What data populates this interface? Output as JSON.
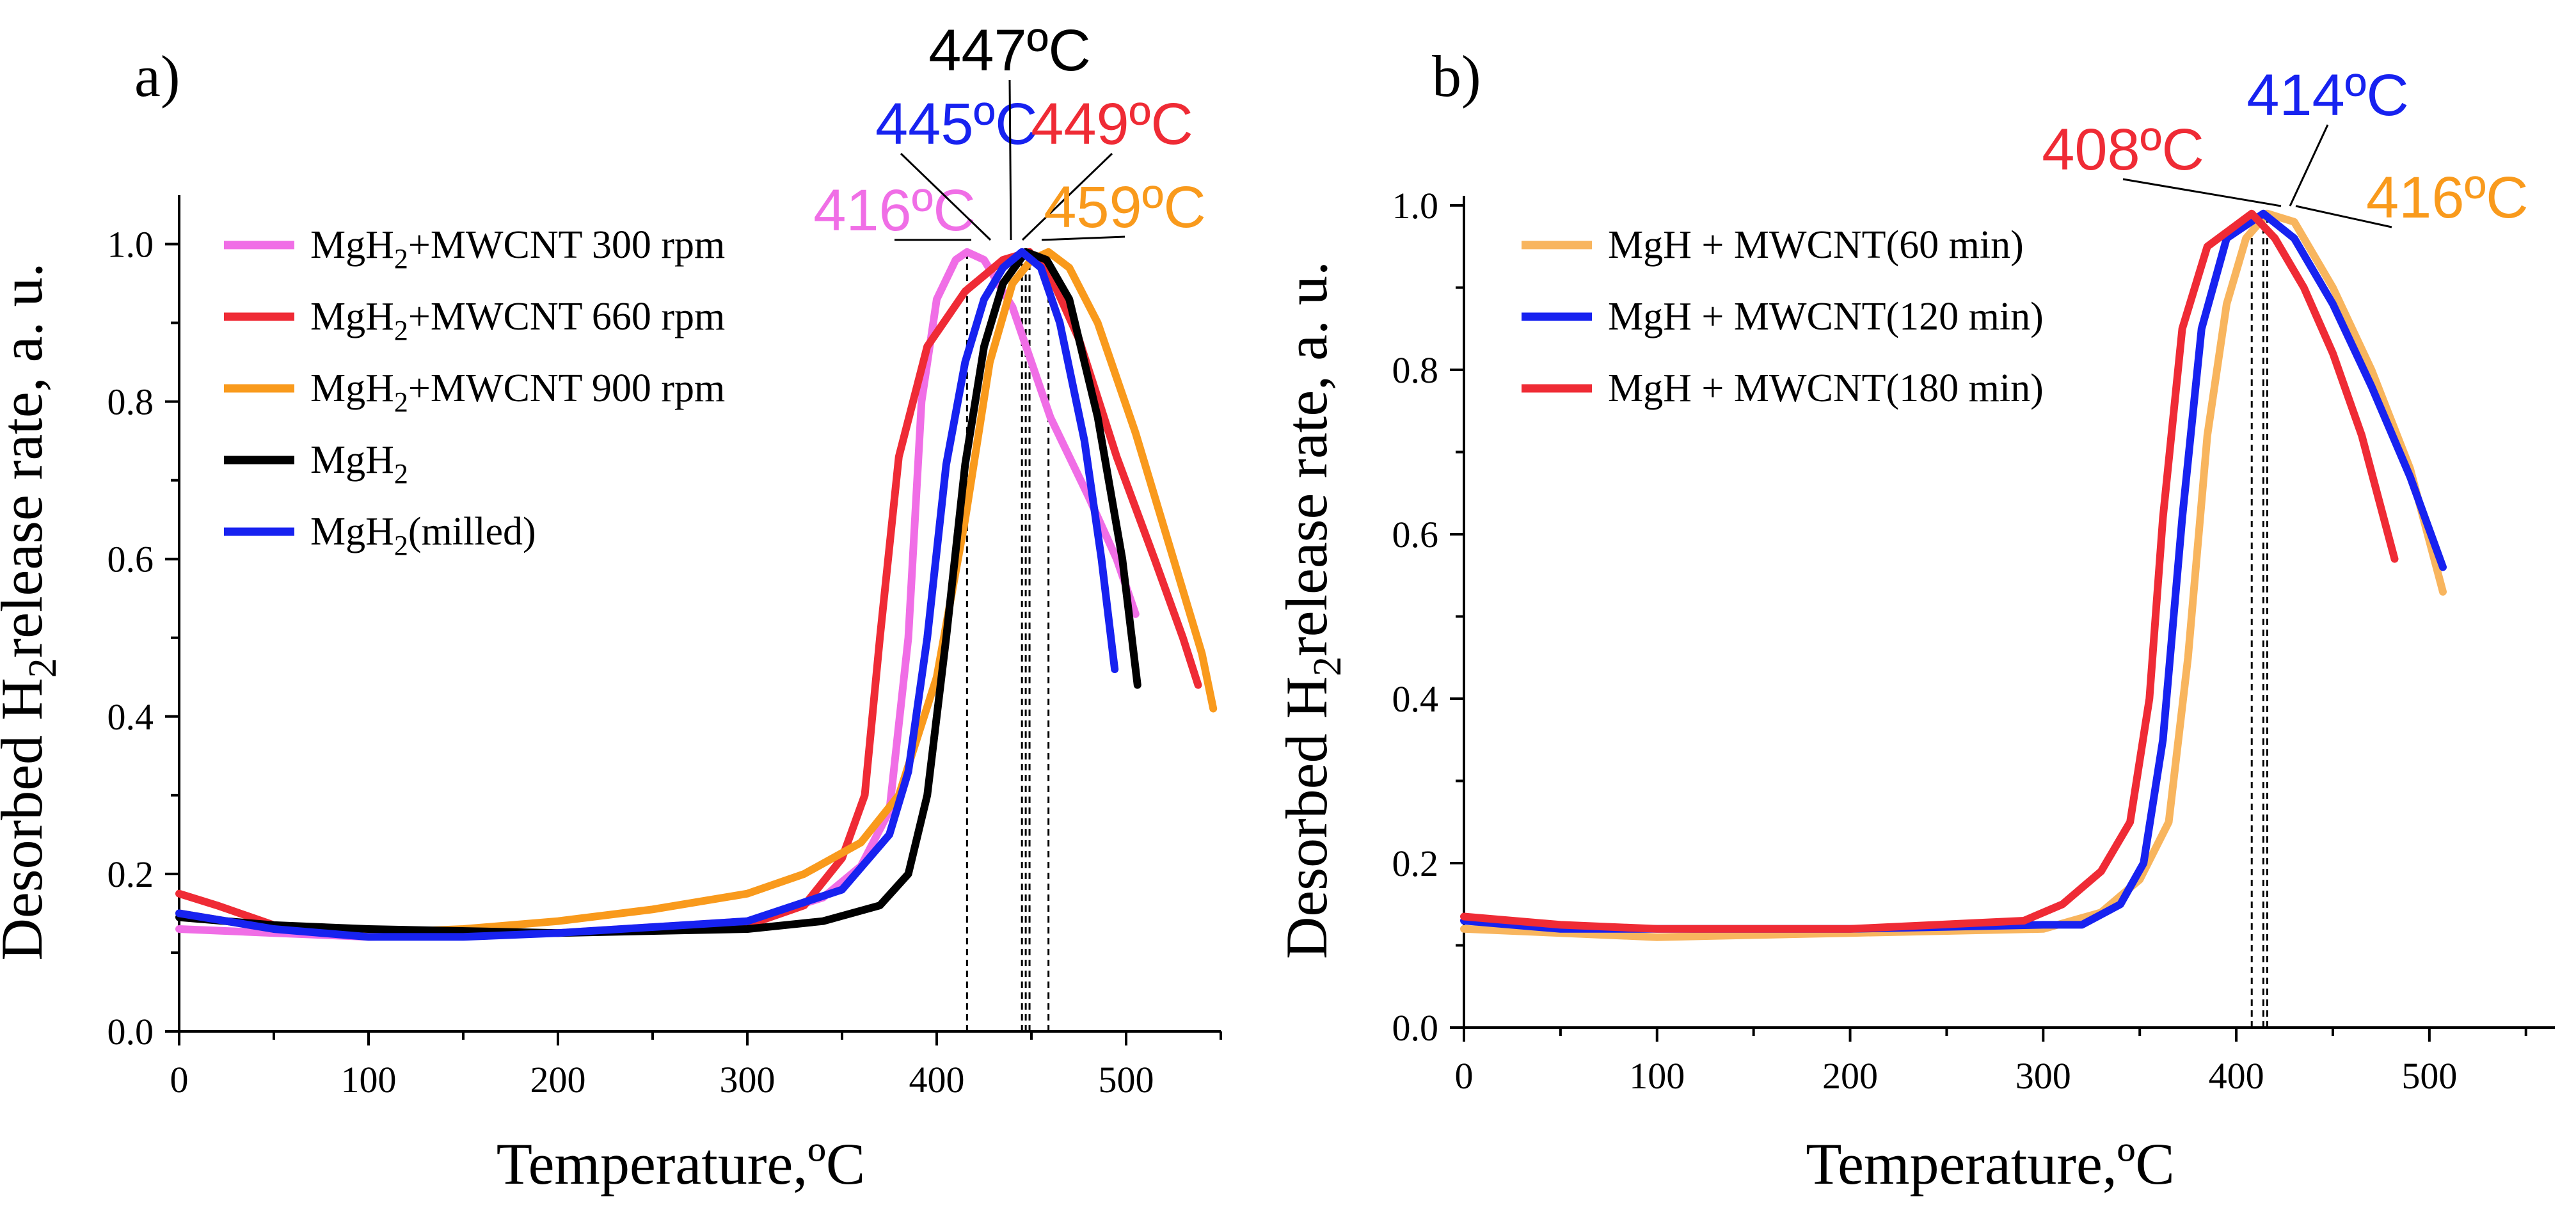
{
  "chart_data": [
    {
      "type": "line",
      "panel_label": "a)",
      "xlabel": "Temperature,ºC",
      "ylabel_pre": "Desorbed H",
      "ylabel_sub": "2",
      "ylabel_post": "release rate, a. u.",
      "xlim": [
        0,
        550
      ],
      "ylim": [
        0,
        1.05
      ],
      "xticks": [
        "0",
        "100",
        "200",
        "300",
        "400",
        "500"
      ],
      "yticks": [
        "0.0",
        "0.2",
        "0.4",
        "0.6",
        "0.8",
        "1.0"
      ],
      "legend_position": "upper-left",
      "series": [
        {
          "name_parts": [
            "MgH",
            "2",
            "+MWCNT 300 rpm"
          ],
          "color": "#f06ee6",
          "points": [
            [
              0,
              0.13
            ],
            [
              50,
              0.125
            ],
            [
              100,
              0.12
            ],
            [
              200,
              0.125
            ],
            [
              300,
              0.14
            ],
            [
              340,
              0.17
            ],
            [
              360,
              0.21
            ],
            [
              375,
              0.28
            ],
            [
              385,
              0.5
            ],
            [
              392,
              0.8
            ],
            [
              400,
              0.93
            ],
            [
              410,
              0.98
            ],
            [
              416,
              0.99
            ],
            [
              425,
              0.98
            ],
            [
              440,
              0.92
            ],
            [
              460,
              0.78
            ],
            [
              480,
              0.68
            ],
            [
              495,
              0.6
            ],
            [
              505,
              0.53
            ]
          ]
        },
        {
          "name_parts": [
            "MgH",
            "2",
            "+MWCNT 660 rpm"
          ],
          "color": "#ef2b35",
          "points": [
            [
              0,
              0.175
            ],
            [
              20,
              0.16
            ],
            [
              50,
              0.135
            ],
            [
              100,
              0.125
            ],
            [
              200,
              0.125
            ],
            [
              300,
              0.135
            ],
            [
              330,
              0.16
            ],
            [
              350,
              0.22
            ],
            [
              362,
              0.3
            ],
            [
              370,
              0.5
            ],
            [
              380,
              0.73
            ],
            [
              395,
              0.87
            ],
            [
              415,
              0.94
            ],
            [
              435,
              0.98
            ],
            [
              449,
              0.99
            ],
            [
              460,
              0.96
            ],
            [
              475,
              0.88
            ],
            [
              495,
              0.73
            ],
            [
              515,
              0.6
            ],
            [
              530,
              0.5
            ],
            [
              538,
              0.44
            ]
          ]
        },
        {
          "name_parts": [
            "MgH",
            "2",
            "+MWCNT 900 rpm"
          ],
          "color": "#f99a1c",
          "points": [
            [
              0,
              0.15
            ],
            [
              50,
              0.13
            ],
            [
              100,
              0.125
            ],
            [
              150,
              0.13
            ],
            [
              200,
              0.14
            ],
            [
              250,
              0.155
            ],
            [
              300,
              0.175
            ],
            [
              330,
              0.2
            ],
            [
              360,
              0.24
            ],
            [
              380,
              0.3
            ],
            [
              400,
              0.45
            ],
            [
              415,
              0.65
            ],
            [
              428,
              0.85
            ],
            [
              440,
              0.95
            ],
            [
              450,
              0.98
            ],
            [
              459,
              0.99
            ],
            [
              470,
              0.97
            ],
            [
              485,
              0.9
            ],
            [
              505,
              0.76
            ],
            [
              525,
              0.6
            ],
            [
              540,
              0.48
            ],
            [
              546,
              0.41
            ]
          ]
        },
        {
          "name_parts": [
            "MgH",
            "2",
            ""
          ],
          "color": "#000000",
          "points": [
            [
              0,
              0.145
            ],
            [
              50,
              0.135
            ],
            [
              100,
              0.13
            ],
            [
              200,
              0.125
            ],
            [
              300,
              0.13
            ],
            [
              340,
              0.14
            ],
            [
              370,
              0.16
            ],
            [
              385,
              0.2
            ],
            [
              395,
              0.3
            ],
            [
              405,
              0.5
            ],
            [
              415,
              0.72
            ],
            [
              425,
              0.87
            ],
            [
              435,
              0.95
            ],
            [
              447,
              0.99
            ],
            [
              458,
              0.98
            ],
            [
              470,
              0.93
            ],
            [
              485,
              0.78
            ],
            [
              498,
              0.6
            ],
            [
              506,
              0.44
            ]
          ]
        },
        {
          "name_parts": [
            "MgH",
            "2",
            "(milled)"
          ],
          "color": "#1722f0",
          "points": [
            [
              0,
              0.15
            ],
            [
              50,
              0.13
            ],
            [
              100,
              0.12
            ],
            [
              150,
              0.12
            ],
            [
              200,
              0.125
            ],
            [
              300,
              0.14
            ],
            [
              350,
              0.18
            ],
            [
              375,
              0.25
            ],
            [
              385,
              0.33
            ],
            [
              395,
              0.5
            ],
            [
              405,
              0.72
            ],
            [
              415,
              0.85
            ],
            [
              425,
              0.93
            ],
            [
              435,
              0.97
            ],
            [
              445,
              0.99
            ],
            [
              455,
              0.97
            ],
            [
              465,
              0.9
            ],
            [
              478,
              0.75
            ],
            [
              487,
              0.6
            ],
            [
              494,
              0.46
            ]
          ]
        }
      ],
      "peaks": [
        {
          "label": "416ºC",
          "x": 416,
          "color": "#f06ee6"
        },
        {
          "label": "445ºC",
          "x": 445,
          "color": "#1722f0"
        },
        {
          "label": "447ºC",
          "x": 447,
          "color": "#000000"
        },
        {
          "label": "449ºC",
          "x": 449,
          "color": "#ef2b35"
        },
        {
          "label": "459ºC",
          "x": 459,
          "color": "#f99a1c"
        }
      ]
    },
    {
      "type": "line",
      "panel_label": "b)",
      "xlabel": "Temperature,ºC",
      "ylabel_pre": "Desorbed H",
      "ylabel_sub": "2",
      "ylabel_post": "release rate, a. u.",
      "xlim": [
        0,
        565
      ],
      "ylim": [
        0,
        1.0
      ],
      "xticks": [
        "0",
        "100",
        "200",
        "300",
        "400",
        "500"
      ],
      "yticks": [
        "0.0",
        "0.2",
        "0.4",
        "0.6",
        "0.8",
        "1.0"
      ],
      "legend_position": "upper-left",
      "series": [
        {
          "name_parts": [
            "MgH",
            "",
            " + MWCNT(60 min)"
          ],
          "color": "#f8b55e",
          "points": [
            [
              0,
              0.12
            ],
            [
              50,
              0.115
            ],
            [
              100,
              0.11
            ],
            [
              200,
              0.115
            ],
            [
              300,
              0.12
            ],
            [
              330,
              0.14
            ],
            [
              350,
              0.18
            ],
            [
              365,
              0.25
            ],
            [
              375,
              0.45
            ],
            [
              385,
              0.72
            ],
            [
              395,
              0.88
            ],
            [
              405,
              0.96
            ],
            [
              416,
              0.99
            ],
            [
              430,
              0.98
            ],
            [
              450,
              0.9
            ],
            [
              470,
              0.8
            ],
            [
              490,
              0.68
            ],
            [
              507,
              0.53
            ]
          ]
        },
        {
          "name_parts": [
            "MgH",
            "",
            " + MWCNT(120 min)"
          ],
          "color": "#1722f0",
          "points": [
            [
              0,
              0.13
            ],
            [
              50,
              0.12
            ],
            [
              100,
              0.12
            ],
            [
              200,
              0.12
            ],
            [
              300,
              0.125
            ],
            [
              320,
              0.125
            ],
            [
              340,
              0.15
            ],
            [
              352,
              0.2
            ],
            [
              362,
              0.35
            ],
            [
              372,
              0.62
            ],
            [
              382,
              0.85
            ],
            [
              395,
              0.96
            ],
            [
              414,
              0.99
            ],
            [
              430,
              0.96
            ],
            [
              450,
              0.88
            ],
            [
              470,
              0.78
            ],
            [
              490,
              0.67
            ],
            [
              507,
              0.56
            ]
          ]
        },
        {
          "name_parts": [
            "MgH",
            "",
            " + MWCNT(180 min)"
          ],
          "color": "#ef2b35",
          "points": [
            [
              0,
              0.135
            ],
            [
              50,
              0.125
            ],
            [
              100,
              0.12
            ],
            [
              200,
              0.12
            ],
            [
              290,
              0.13
            ],
            [
              310,
              0.15
            ],
            [
              330,
              0.19
            ],
            [
              345,
              0.25
            ],
            [
              355,
              0.4
            ],
            [
              362,
              0.62
            ],
            [
              372,
              0.85
            ],
            [
              385,
              0.95
            ],
            [
              408,
              0.99
            ],
            [
              420,
              0.96
            ],
            [
              435,
              0.9
            ],
            [
              450,
              0.82
            ],
            [
              465,
              0.72
            ],
            [
              482,
              0.57
            ]
          ]
        }
      ],
      "peaks": [
        {
          "label": "408ºC",
          "x": 408,
          "color": "#ef2b35"
        },
        {
          "label": "414ºC",
          "x": 414,
          "color": "#1722f0"
        },
        {
          "label": "416ºC",
          "x": 416,
          "color": "#f99a1c"
        }
      ]
    }
  ]
}
